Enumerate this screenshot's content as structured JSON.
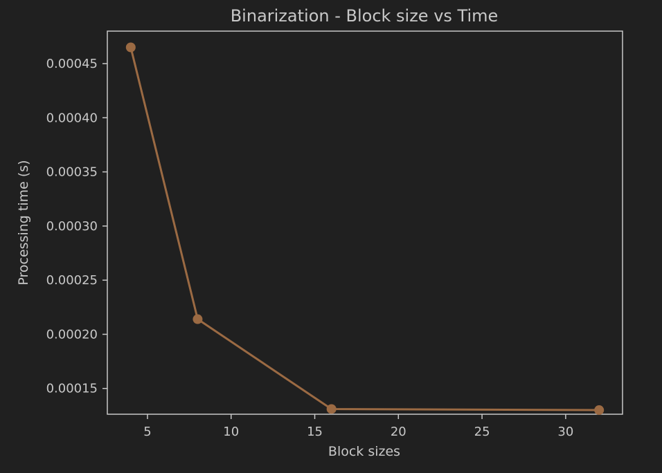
{
  "chart_data": {
    "type": "line",
    "title": "Binarization - Block size vs Time",
    "xlabel": "Block sizes",
    "ylabel": "Processing time (s)",
    "x": [
      4,
      8,
      16,
      32
    ],
    "series": [
      {
        "values": [
          0.000465,
          0.000214,
          0.000131,
          0.00013
        ]
      }
    ],
    "xlim": [
      2.6,
      33.4
    ],
    "ylim": [
      0.0001262,
      0.00048
    ],
    "xticks": [
      5,
      10,
      15,
      20,
      25,
      30
    ],
    "xtick_labels": [
      "5",
      "10",
      "15",
      "20",
      "25",
      "30"
    ],
    "yticks": [
      0.00015,
      0.0002,
      0.00025,
      0.0003,
      0.00035,
      0.0004,
      0.00045
    ],
    "ytick_labels": [
      "0.00015",
      "0.00020",
      "0.00025",
      "0.00030",
      "0.00035",
      "0.00040",
      "0.00045"
    ],
    "grid": false,
    "colors": {
      "background": "#202020",
      "axes": "#c8c8c8",
      "text": "#c8c8c8",
      "line": "#9b6a43"
    },
    "markers": "circle"
  }
}
